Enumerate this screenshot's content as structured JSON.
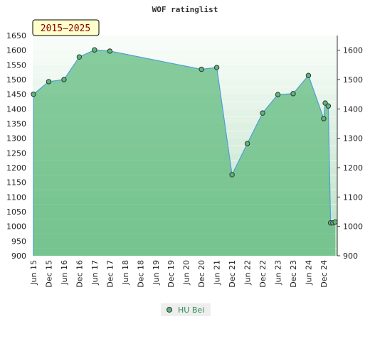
{
  "chart_data": {
    "type": "area",
    "title": "WOF ratinglist",
    "period_badge": "2015–2025",
    "ylim": [
      900,
      1650
    ],
    "left_ticks": [
      900,
      950,
      1000,
      1050,
      1100,
      1150,
      1200,
      1250,
      1300,
      1350,
      1400,
      1450,
      1500,
      1550,
      1600,
      1650
    ],
    "right_ticks": [
      900,
      1000,
      1100,
      1200,
      1300,
      1400,
      1500,
      1600
    ],
    "x_tick_labels": [
      "Jun 15",
      "Dec 15",
      "Jun 16",
      "Dec 16",
      "Jun 17",
      "Dec 17",
      "Jun 18",
      "Dec 18",
      "Jun 19",
      "Dec 19",
      "Jun 20",
      "Dec 20",
      "Jun 21",
      "Dec 21",
      "Jun 22",
      "Dec 22",
      "Jun 23",
      "Dec 23",
      "Jun 24",
      "Dec 24"
    ],
    "series": [
      {
        "name": "HU Bei",
        "color": "#4a9fd8",
        "fill": "#5cb87a",
        "points": [
          {
            "t": 0.0,
            "y": 1450
          },
          {
            "t": 1.0,
            "y": 1493
          },
          {
            "t": 2.0,
            "y": 1500
          },
          {
            "t": 3.0,
            "y": 1577
          },
          {
            "t": 4.0,
            "y": 1601
          },
          {
            "t": 5.0,
            "y": 1597
          },
          {
            "t": 11.0,
            "y": 1535
          },
          {
            "t": 12.0,
            "y": 1541
          },
          {
            "t": 13.0,
            "y": 1176
          },
          {
            "t": 14.0,
            "y": 1282
          },
          {
            "t": 15.0,
            "y": 1386
          },
          {
            "t": 16.0,
            "y": 1449
          },
          {
            "t": 17.0,
            "y": 1452
          },
          {
            "t": 18.0,
            "y": 1514
          },
          {
            "t": 19.0,
            "y": 1367
          },
          {
            "t": 19.1,
            "y": 1420
          },
          {
            "t": 19.3,
            "y": 1410
          },
          {
            "t": 19.45,
            "y": 1012
          },
          {
            "t": 19.6,
            "y": 1012
          },
          {
            "t": 19.75,
            "y": 1015
          }
        ]
      }
    ],
    "legend": {
      "placement": "bottom-center",
      "entries": [
        "HU Bei"
      ]
    },
    "grid": true
  }
}
